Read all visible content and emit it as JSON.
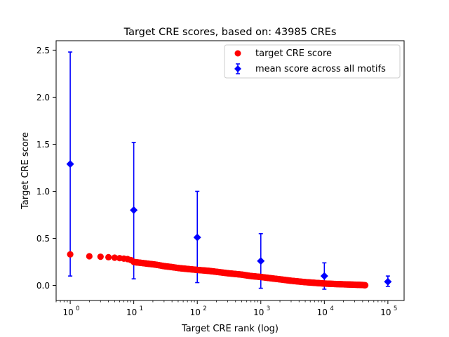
{
  "chart_data": {
    "type": "scatter",
    "title": "Target CRE scores, based on: 43985 CREs",
    "xlabel": "Target CRE rank (log)",
    "ylabel": "Target CRE score",
    "xscale": "log",
    "xlim": [
      0.6,
      180000
    ],
    "ylim": [
      -0.16,
      2.6
    ],
    "grid": false,
    "legend_position": "top-right",
    "x_tick_labels": [
      {
        "base": "10",
        "exp": "0",
        "value": 1
      },
      {
        "base": "10",
        "exp": "1",
        "value": 10
      },
      {
        "base": "10",
        "exp": "2",
        "value": 100
      },
      {
        "base": "10",
        "exp": "3",
        "value": 1000
      },
      {
        "base": "10",
        "exp": "4",
        "value": 10000
      },
      {
        "base": "10",
        "exp": "5",
        "value": 100000
      }
    ],
    "y_tick_labels": [
      "0.0",
      "0.5",
      "1.0",
      "1.5",
      "2.0",
      "2.5"
    ],
    "y_tick_values": [
      0.0,
      0.5,
      1.0,
      1.5,
      2.0,
      2.5
    ],
    "series": [
      {
        "name": "target CRE score",
        "marker": "circle",
        "color": "#ff0000",
        "total_points": 43985,
        "x": [
          1,
          2,
          3,
          4,
          5,
          6,
          7,
          8,
          9,
          10,
          11,
          12,
          13,
          15,
          17,
          20,
          25,
          30,
          40,
          50,
          70,
          100,
          150,
          200,
          300,
          500,
          700,
          1000,
          1500,
          2000,
          3000,
          5000,
          7000,
          10000,
          15000,
          20000,
          30000,
          40000,
          43985
        ],
        "y": [
          0.33,
          0.31,
          0.305,
          0.3,
          0.295,
          0.29,
          0.285,
          0.28,
          0.27,
          0.25,
          0.245,
          0.243,
          0.24,
          0.235,
          0.23,
          0.225,
          0.215,
          0.205,
          0.195,
          0.185,
          0.175,
          0.165,
          0.155,
          0.145,
          0.13,
          0.115,
          0.1,
          0.09,
          0.075,
          0.065,
          0.05,
          0.035,
          0.028,
          0.02,
          0.015,
          0.012,
          0.008,
          0.005,
          0.002
        ]
      },
      {
        "name": "mean score across all motifs",
        "marker": "diamond",
        "color": "#0000ff",
        "x": [
          1,
          10,
          100,
          1000,
          10000,
          100000
        ],
        "y": [
          1.29,
          0.8,
          0.51,
          0.26,
          0.1,
          0.04
        ],
        "yerr_low": [
          0.1,
          0.07,
          0.03,
          -0.03,
          -0.04,
          -0.01
        ],
        "yerr_high": [
          2.48,
          1.52,
          1.0,
          0.55,
          0.24,
          0.1
        ]
      }
    ]
  }
}
